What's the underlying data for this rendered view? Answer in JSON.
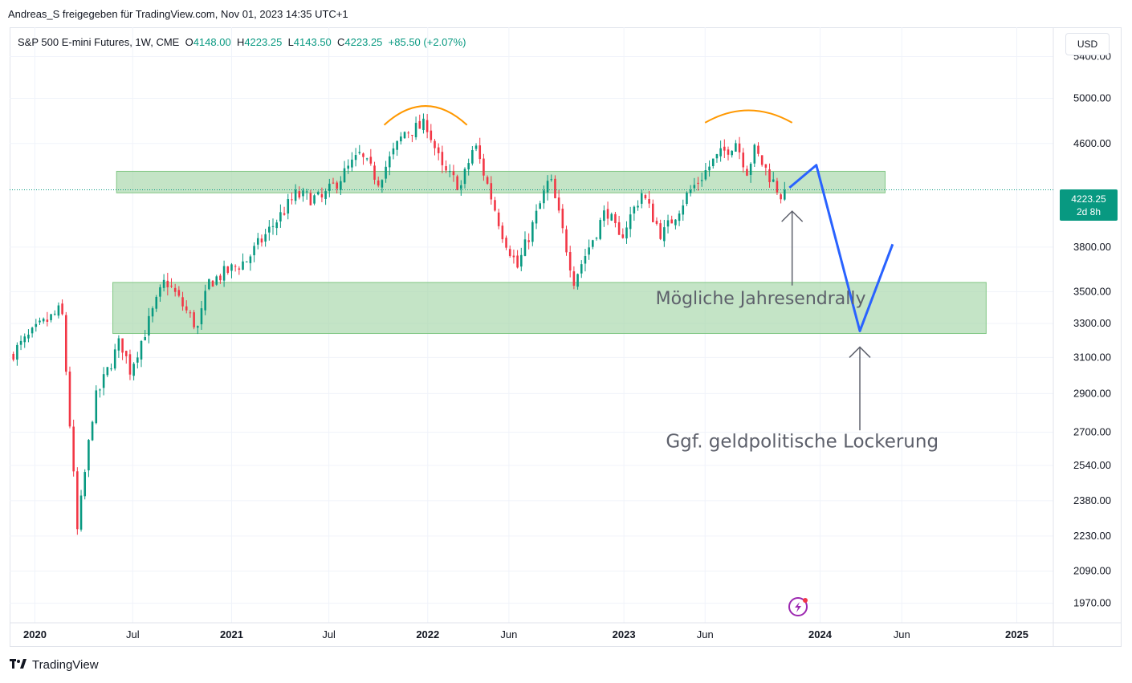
{
  "header": {
    "shared_by": "Andreas_S freigegeben für TradingView.com, Nov 01, 2023 14:35 UTC+1"
  },
  "legend": {
    "symbol": "S&P 500 E-mini Futures, 1W, CME",
    "open_label": "O",
    "open": "4148.00",
    "high_label": "H",
    "high": "4223.25",
    "low_label": "L",
    "low": "4143.50",
    "close_label": "C",
    "close": "4223.25",
    "change": "+85.50 (+2.07%)"
  },
  "currency": "USD",
  "price_badge": {
    "price": "4223.25",
    "countdown": "2d 8h"
  },
  "footer": {
    "brand": "TradingView"
  },
  "colors": {
    "up": "#089981",
    "down": "#f23645",
    "zone": "#a5d6a7",
    "arc": "#ff9800",
    "path": "#2962ff",
    "arrow": "#5d606b"
  },
  "chart_data": {
    "type": "candlestick",
    "title": "S&P 500 E-mini Futures, 1W, CME",
    "y_scale": "log",
    "ylim": [
      1900,
      5700
    ],
    "y_ticks": [
      5400,
      5000,
      4600,
      3800,
      3500,
      3300,
      3100,
      2900,
      2700,
      2540,
      2380,
      2230,
      2090,
      1970
    ],
    "x_range": [
      "2019-11-15",
      "2025-03-10"
    ],
    "x_ticks": [
      {
        "date": "2020-01-01",
        "label": "2020",
        "bold": true
      },
      {
        "date": "2020-07-01",
        "label": "Jul",
        "bold": false
      },
      {
        "date": "2021-01-01",
        "label": "2021",
        "bold": true
      },
      {
        "date": "2021-07-01",
        "label": "Jul",
        "bold": false
      },
      {
        "date": "2022-01-01",
        "label": "2022",
        "bold": true
      },
      {
        "date": "2022-06-01",
        "label": "Jun",
        "bold": false
      },
      {
        "date": "2023-01-01",
        "label": "2023",
        "bold": true
      },
      {
        "date": "2023-06-01",
        "label": "Jun",
        "bold": false
      },
      {
        "date": "2024-01-01",
        "label": "2024",
        "bold": true
      },
      {
        "date": "2024-06-01",
        "label": "Jun",
        "bold": false
      },
      {
        "date": "2025-01-01",
        "label": "2025",
        "bold": true
      }
    ],
    "grid": true,
    "last_price": 4223.25,
    "anchors": [
      [
        "2019-11-15",
        3110
      ],
      [
        "2020-01-10",
        3280
      ],
      [
        "2020-02-20",
        3390
      ],
      [
        "2020-03-20",
        2250
      ],
      [
        "2020-04-20",
        2850
      ],
      [
        "2020-06-08",
        3200
      ],
      [
        "2020-06-26",
        3030
      ],
      [
        "2020-08-31",
        3580
      ],
      [
        "2020-10-30",
        3270
      ],
      [
        "2020-11-20",
        3560
      ],
      [
        "2021-01-29",
        3710
      ],
      [
        "2021-04-30",
        4180
      ],
      [
        "2021-06-18",
        4150
      ],
      [
        "2021-08-27",
        4500
      ],
      [
        "2021-10-01",
        4300
      ],
      [
        "2021-11-19",
        4700
      ],
      [
        "2021-12-31",
        4760
      ],
      [
        "2022-01-28",
        4380
      ],
      [
        "2022-03-04",
        4250
      ],
      [
        "2022-03-29",
        4600
      ],
      [
        "2022-05-20",
        3900
      ],
      [
        "2022-06-17",
        3660
      ],
      [
        "2022-08-16",
        4320
      ],
      [
        "2022-09-30",
        3580
      ],
      [
        "2022-11-30",
        4080
      ],
      [
        "2022-12-23",
        3850
      ],
      [
        "2023-02-03",
        4200
      ],
      [
        "2023-03-13",
        3880
      ],
      [
        "2023-04-28",
        4180
      ],
      [
        "2023-06-16",
        4450
      ],
      [
        "2023-07-28",
        4620
      ],
      [
        "2023-08-18",
        4380
      ],
      [
        "2023-09-01",
        4540
      ],
      [
        "2023-10-27",
        4137
      ],
      [
        "2023-11-01",
        4223.25
      ]
    ],
    "zones": [
      {
        "x0": "2020-06-01",
        "x1": "2024-05-01",
        "y0": 4200,
        "y1": 4370
      },
      {
        "x0": "2020-05-25",
        "x1": "2024-11-05",
        "y0": 3240,
        "y1": 3560
      }
    ],
    "projection": [
      [
        "2023-11-05",
        4240
      ],
      [
        "2023-12-25",
        4420
      ],
      [
        "2024-03-15",
        3255
      ],
      [
        "2024-05-15",
        3820
      ]
    ],
    "arcs": [
      {
        "x0": "2021-10-12",
        "x1": "2022-03-15",
        "y_ends": 4760,
        "y_peak": 4930
      },
      {
        "x0": "2023-06-01",
        "x1": "2023-11-10",
        "y_ends": 4780,
        "y_peak": 4890
      }
    ],
    "annotations": [
      {
        "text": "Mögliche Jahresendrally",
        "x": "2023-03-01",
        "y": 3420,
        "arrow_from": 3540,
        "arrow_to": 4060,
        "arrow_x": "2023-11-10"
      },
      {
        "text": "Ggf. geldpolitische Lockerung",
        "x": "2023-03-20",
        "y": 2625,
        "arrow_from": 2710,
        "arrow_to": 3160,
        "arrow_x": "2024-03-15"
      }
    ]
  }
}
